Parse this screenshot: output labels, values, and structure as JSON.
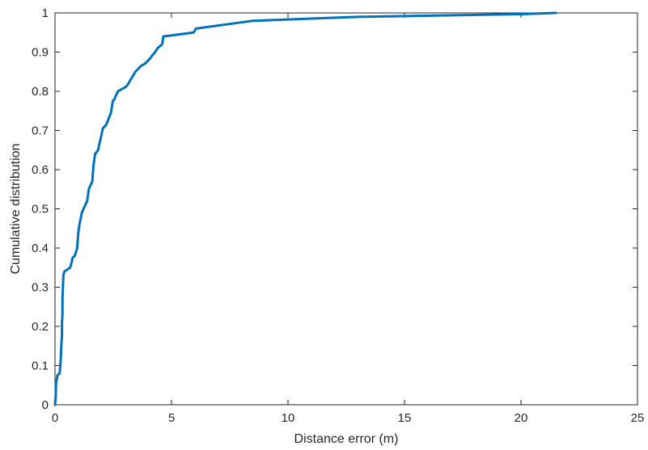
{
  "chart_data": {
    "type": "line",
    "title": "",
    "xlabel": "Distance error (m)",
    "ylabel": "Cumulative distribution",
    "xlim": [
      0,
      25
    ],
    "ylim": [
      0,
      1
    ],
    "xticks": [
      0,
      5,
      10,
      15,
      20,
      25
    ],
    "yticks": [
      0,
      0.1,
      0.2,
      0.3,
      0.4,
      0.5,
      0.6,
      0.7,
      0.8,
      0.9,
      1
    ],
    "xtick_labels": [
      "0",
      "5",
      "10",
      "15",
      "20",
      "25"
    ],
    "ytick_labels": [
      "0",
      "0.1",
      "0.2",
      "0.3",
      "0.4",
      "0.5",
      "0.6",
      "0.7",
      "0.8",
      "0.9",
      "1"
    ],
    "grid": false,
    "box": true,
    "line_color": "#0072BD",
    "series": [
      {
        "x": [
          0.0,
          0.03,
          0.05,
          0.08,
          0.1,
          0.2,
          0.25,
          0.27,
          0.3,
          0.3,
          0.32,
          0.32,
          0.34,
          0.36,
          0.38,
          0.4,
          0.65,
          0.72,
          0.75,
          0.85,
          0.9,
          0.95,
          1.0,
          1.05,
          1.15,
          1.3,
          1.38,
          1.45,
          1.6,
          1.65,
          1.72,
          1.85,
          1.9,
          2.0,
          2.05,
          2.2,
          2.4,
          2.48,
          2.55,
          2.62,
          2.7,
          3.0,
          3.1,
          3.3,
          3.45,
          3.7,
          3.85,
          4.1,
          4.15,
          4.3,
          4.4,
          4.6,
          4.65,
          5.95,
          6.05,
          8.5,
          13.0,
          20.0,
          21.5
        ],
        "y": [
          0.0,
          0.02,
          0.06,
          0.065,
          0.075,
          0.08,
          0.12,
          0.15,
          0.18,
          0.21,
          0.23,
          0.27,
          0.3,
          0.33,
          0.335,
          0.34,
          0.35,
          0.365,
          0.375,
          0.38,
          0.39,
          0.4,
          0.44,
          0.46,
          0.49,
          0.51,
          0.52,
          0.55,
          0.57,
          0.61,
          0.64,
          0.65,
          0.665,
          0.69,
          0.705,
          0.715,
          0.745,
          0.775,
          0.78,
          0.79,
          0.8,
          0.81,
          0.815,
          0.835,
          0.85,
          0.865,
          0.87,
          0.885,
          0.89,
          0.9,
          0.91,
          0.92,
          0.94,
          0.95,
          0.96,
          0.98,
          0.99,
          0.997,
          1.0
        ]
      }
    ]
  }
}
